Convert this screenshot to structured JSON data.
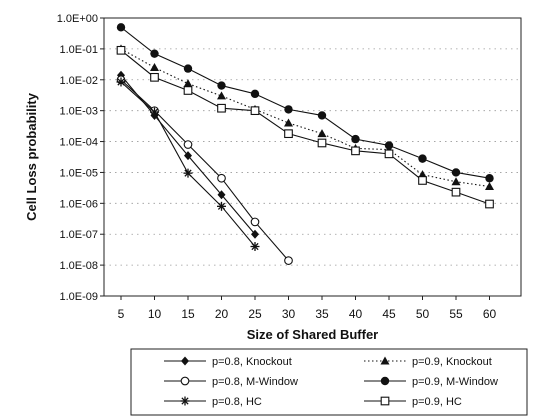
{
  "chart_data": {
    "type": "line",
    "title": "",
    "xlabel": "Size of Shared Buffer",
    "ylabel": "Cell Loss probability",
    "yscale": "log",
    "ylim": [
      1e-09,
      1
    ],
    "grid": "horizontal dotted",
    "legend_position": "bottom",
    "x_tick_labels": [
      "5",
      "10",
      "15",
      "20",
      "25",
      "30",
      "35",
      "40",
      "45",
      "50",
      "55",
      "60"
    ],
    "y_tick_labels": [
      "1.0E+00",
      "1.0E-01",
      "1.0E-02",
      "1.0E-03",
      "1.0E-04",
      "1.0E-05",
      "1.0E-06",
      "1.0E-07",
      "1.0E-08",
      "1.0E-09"
    ],
    "series": [
      {
        "name": "p=0.8, Knockout",
        "marker": "diamond",
        "line": "solid",
        "color": "#111111",
        "x": [
          5,
          10,
          15,
          20,
          25
        ],
        "y": [
          0.014,
          0.0007,
          3.5e-05,
          1.9e-06,
          1e-07
        ]
      },
      {
        "name": "p=0.9, Knockout",
        "marker": "triangle",
        "line": "dotted",
        "color": "#111111",
        "x": [
          5,
          10,
          15,
          20,
          25,
          30,
          35,
          40,
          45,
          50,
          55,
          60
        ],
        "y": [
          0.1,
          0.025,
          0.0075,
          0.003,
          0.0011,
          0.0004,
          0.00018,
          6e-05,
          5.5e-05,
          8.5e-06,
          5e-06,
          3.5e-06
        ]
      },
      {
        "name": "p=0.8, M-Window",
        "marker": "circle-open",
        "line": "solid",
        "color": "#111111",
        "x": [
          5,
          10,
          15,
          20,
          25,
          30
        ],
        "y": [
          0.01,
          0.001,
          8e-05,
          6.5e-06,
          2.5e-07,
          1.4e-08
        ]
      },
      {
        "name": "p=0.9, M-Window",
        "marker": "circle-filled",
        "line": "solid",
        "color": "#111111",
        "x": [
          5,
          10,
          15,
          20,
          25,
          30,
          35,
          40,
          45,
          50,
          55,
          60
        ],
        "y": [
          0.5,
          0.07,
          0.023,
          0.0065,
          0.0035,
          0.0011,
          0.0007,
          0.00012,
          7.5e-05,
          2.8e-05,
          1e-05,
          6.5e-06
        ]
      },
      {
        "name": "p=0.8, HC",
        "marker": "star",
        "line": "solid",
        "color": "#111111",
        "x": [
          5,
          10,
          15,
          20,
          25
        ],
        "y": [
          0.0085,
          0.0009,
          9.5e-06,
          8e-07,
          4e-08
        ]
      },
      {
        "name": "p=0.9, HC",
        "marker": "square-open",
        "line": "solid",
        "color": "#111111",
        "x": [
          5,
          10,
          15,
          20,
          25,
          30,
          35,
          40,
          45,
          50,
          55,
          60
        ],
        "y": [
          0.09,
          0.012,
          0.0045,
          0.0012,
          0.001,
          0.00018,
          9e-05,
          5e-05,
          4e-05,
          5.5e-06,
          2.3e-06,
          9.5e-07
        ]
      }
    ]
  }
}
